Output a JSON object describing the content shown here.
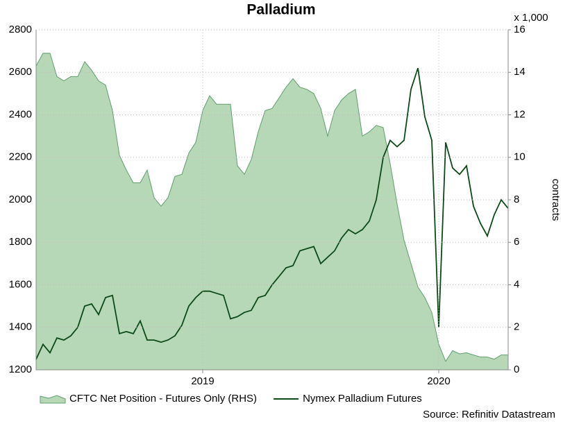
{
  "chart_data": {
    "type": "area-line",
    "title": "Palladium",
    "y2_unit": "x 1,000",
    "y2_label": "contracts",
    "source": "Source: Refinitiv Datastream",
    "categories": [
      null,
      null,
      null,
      null,
      null,
      null,
      null,
      null,
      null,
      null,
      null,
      null,
      null,
      null,
      null,
      null,
      null,
      null,
      null,
      null,
      null,
      null,
      null,
      null,
      "2019",
      null,
      null,
      null,
      null,
      null,
      null,
      null,
      null,
      null,
      null,
      null,
      null,
      null,
      null,
      null,
      null,
      null,
      null,
      null,
      null,
      null,
      null,
      null,
      null,
      null,
      null,
      null,
      null,
      null,
      null,
      null,
      null,
      null,
      "2020",
      null,
      null,
      null,
      null,
      null,
      null,
      null,
      null,
      null,
      null
    ],
    "ylim": [
      1200,
      2800
    ],
    "yticks": [
      1200,
      1400,
      1600,
      1800,
      2000,
      2200,
      2400,
      2600,
      2800
    ],
    "y2lim": [
      0,
      16
    ],
    "y2ticks": [
      0,
      2,
      4,
      6,
      8,
      10,
      12,
      14,
      16
    ],
    "grid": true,
    "series": [
      {
        "name": "CFTC Net Position - Futures Only (RHS)",
        "kind": "area",
        "axis": "y2",
        "color": "#b7d8b7",
        "edge": "#5f9e6e",
        "values": [
          14.3,
          14.9,
          14.9,
          13.8,
          13.6,
          13.8,
          13.8,
          14.5,
          14.1,
          13.6,
          13.4,
          12.2,
          10.1,
          9.4,
          8.8,
          8.8,
          9.4,
          8.1,
          7.7,
          8.1,
          9.1,
          9.2,
          10.2,
          10.7,
          12.2,
          12.9,
          12.5,
          12.5,
          12.5,
          9.6,
          9.2,
          9.9,
          11.2,
          12.2,
          12.3,
          12.8,
          13.3,
          13.7,
          13.3,
          13.2,
          13.0,
          12.3,
          11.0,
          12.2,
          12.7,
          13.0,
          13.2,
          11.0,
          11.2,
          11.5,
          11.4,
          9.7,
          7.8,
          6.1,
          5.0,
          3.9,
          3.4,
          2.7,
          1.2,
          0.4,
          0.9,
          0.75,
          0.8,
          0.7,
          0.6,
          0.6,
          0.5,
          0.7,
          0.7
        ]
      },
      {
        "name": "Nymex Palladium Futures",
        "kind": "line",
        "axis": "y",
        "color": "#0b4a16",
        "values": [
          1250,
          1320,
          1280,
          1350,
          1340,
          1360,
          1400,
          1500,
          1510,
          1460,
          1540,
          1550,
          1370,
          1380,
          1370,
          1430,
          1340,
          1340,
          1330,
          1340,
          1360,
          1410,
          1500,
          1540,
          1570,
          1570,
          1560,
          1550,
          1440,
          1450,
          1470,
          1480,
          1540,
          1550,
          1600,
          1640,
          1680,
          1690,
          1760,
          1770,
          1780,
          1700,
          1730,
          1760,
          1820,
          1860,
          1840,
          1860,
          1900,
          2000,
          2200,
          2280,
          2250,
          2280,
          2520,
          2620,
          2390,
          2280,
          1400,
          2270,
          2150,
          2120,
          2160,
          1970,
          1890,
          1830,
          1930,
          2000,
          1960
        ]
      }
    ]
  }
}
